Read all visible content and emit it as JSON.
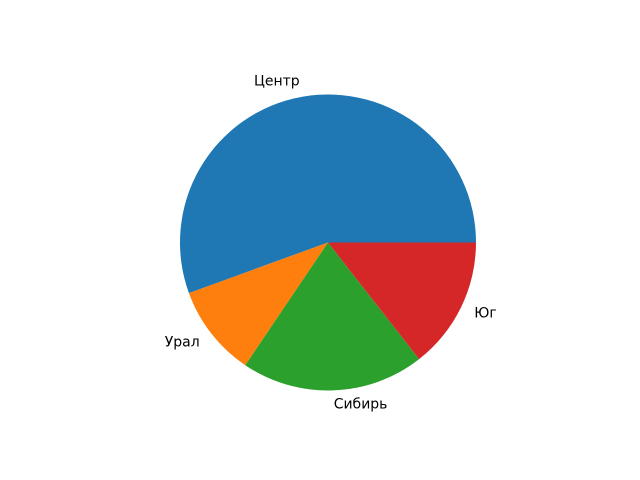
{
  "chart_data": {
    "type": "pie",
    "title": "",
    "legend": "none",
    "background": "#ffffff",
    "text_color": "#000000",
    "start_angle": 0,
    "direction": "counterclockwise",
    "label_distance": 1.1,
    "categories": [
      "Центр",
      "Урал",
      "Сибирь",
      "Юг"
    ],
    "values": [
      50,
      9,
      18,
      13
    ],
    "slices": [
      {
        "label": "Центр",
        "value": 50,
        "percent": 55.6,
        "angle_deg": 200,
        "color": "#1f77b4"
      },
      {
        "label": "Урал",
        "value": 9,
        "percent": 10.0,
        "angle_deg": 36,
        "color": "#ff7f0e"
      },
      {
        "label": "Сибирь",
        "value": 18,
        "percent": 20.0,
        "angle_deg": 72,
        "color": "#2ca02c"
      },
      {
        "label": "Юг",
        "value": 13,
        "percent": 14.4,
        "angle_deg": 52,
        "color": "#d62728"
      }
    ]
  }
}
